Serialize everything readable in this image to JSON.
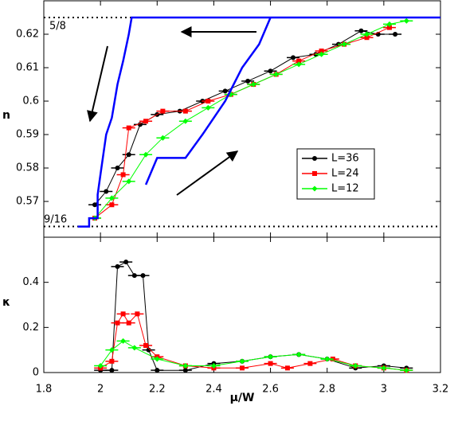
{
  "chart_data": [
    {
      "type": "line",
      "y_label": "n",
      "xlim": [
        1.8,
        3.2
      ],
      "xticks": [
        1.8,
        2,
        2.2,
        2.4,
        2.6,
        2.8,
        3,
        3.2
      ],
      "ylim": [
        0.5593,
        0.63
      ],
      "yticks": [
        0.57,
        0.58,
        0.59,
        0.6,
        0.61,
        0.62
      ],
      "reference_lines": [
        {
          "value": 0.625,
          "label": "5/8"
        },
        {
          "value": 0.5625,
          "label": "9/16"
        }
      ],
      "legend": "right",
      "series": [
        {
          "name": "L=36",
          "color": "#000000",
          "marker": "circle",
          "x": [
            1.98,
            2.02,
            2.06,
            2.1,
            2.14,
            2.2,
            2.28,
            2.36,
            2.44,
            2.52,
            2.6,
            2.68,
            2.76,
            2.84,
            2.92,
            2.98,
            3.04
          ],
          "values": [
            0.569,
            0.573,
            0.58,
            0.584,
            0.593,
            0.596,
            0.597,
            0.6,
            0.603,
            0.606,
            0.609,
            0.613,
            0.614,
            0.617,
            0.621,
            0.62,
            0.62
          ]
        },
        {
          "name": "L=24",
          "color": "#ff0000",
          "marker": "square",
          "x": [
            1.98,
            2.04,
            2.08,
            2.1,
            2.16,
            2.22,
            2.3,
            2.38,
            2.46,
            2.54,
            2.62,
            2.7,
            2.78,
            2.86,
            2.94,
            3.02
          ],
          "values": [
            0.565,
            0.569,
            0.578,
            0.592,
            0.594,
            0.597,
            0.597,
            0.6,
            0.602,
            0.605,
            0.608,
            0.612,
            0.615,
            0.617,
            0.619,
            0.622
          ]
        },
        {
          "name": "L=12",
          "color": "#00ff00",
          "marker": "diamond",
          "x": [
            1.98,
            2.04,
            2.1,
            2.16,
            2.22,
            2.3,
            2.38,
            2.46,
            2.54,
            2.62,
            2.7,
            2.78,
            2.86,
            2.94,
            3.02,
            3.08
          ],
          "values": [
            0.565,
            0.571,
            0.576,
            0.584,
            0.589,
            0.594,
            0.598,
            0.602,
            0.605,
            0.608,
            0.611,
            0.614,
            0.617,
            0.62,
            0.623,
            0.624
          ]
        },
        {
          "color": "#0000ff",
          "marker": "none",
          "x": [
            1.92,
            1.96,
            1.96,
            1.99,
            1.99,
            2.0,
            2.02,
            2.04,
            2.06,
            2.08,
            2.1,
            2.11,
            3.2,
            2.2,
            2.16,
            2.2,
            2.3,
            2.36,
            2.44,
            2.5,
            2.56,
            2.6
          ],
          "values": [
            0.5625,
            0.5625,
            0.565,
            0.565,
            0.572,
            0.578,
            0.59,
            0.595,
            0.605,
            0.612,
            0.62,
            0.625,
            0.625,
            null,
            0.575,
            0.583,
            0.583,
            0.59,
            0.6,
            0.61,
            0.617,
            0.625
          ]
        }
      ]
    },
    {
      "type": "line",
      "x_label": "μ/W",
      "y_label": "κ",
      "xlim": [
        1.8,
        3.2
      ],
      "xticks": [
        1.8,
        2,
        2.2,
        2.4,
        2.6,
        2.8,
        3,
        3.2
      ],
      "ylim": [
        0,
        0.6
      ],
      "yticks": [
        0,
        0.2,
        0.4
      ],
      "series": [
        {
          "color": "#000000",
          "marker": "circle",
          "x": [
            2.0,
            2.04,
            2.06,
            2.09,
            2.12,
            2.15,
            2.17,
            2.2,
            2.3,
            2.4,
            2.5,
            2.6,
            2.7,
            2.8,
            2.9,
            3.0,
            3.08
          ],
          "values": [
            0.01,
            0.01,
            0.47,
            0.49,
            0.43,
            0.43,
            0.1,
            0.01,
            0.01,
            0.04,
            0.05,
            0.07,
            0.08,
            0.06,
            0.02,
            0.03,
            0.02
          ]
        },
        {
          "color": "#ff0000",
          "marker": "square",
          "x": [
            2.0,
            2.04,
            2.06,
            2.08,
            2.1,
            2.13,
            2.16,
            2.2,
            2.3,
            2.4,
            2.5,
            2.6,
            2.66,
            2.74,
            2.82,
            2.9,
            3.0,
            3.08
          ],
          "values": [
            0.02,
            0.05,
            0.22,
            0.26,
            0.22,
            0.26,
            0.12,
            0.07,
            0.03,
            0.02,
            0.02,
            0.04,
            0.02,
            0.04,
            0.06,
            0.03,
            0.02,
            0.01
          ]
        },
        {
          "color": "#00ff00",
          "marker": "diamond",
          "x": [
            2.0,
            2.04,
            2.08,
            2.12,
            2.2,
            2.3,
            2.4,
            2.5,
            2.6,
            2.7,
            2.8,
            2.9,
            3.0,
            3.08
          ],
          "values": [
            0.03,
            0.1,
            0.14,
            0.11,
            0.06,
            0.03,
            0.03,
            0.05,
            0.07,
            0.08,
            0.06,
            0.03,
            0.02,
            0.01
          ]
        }
      ]
    }
  ]
}
